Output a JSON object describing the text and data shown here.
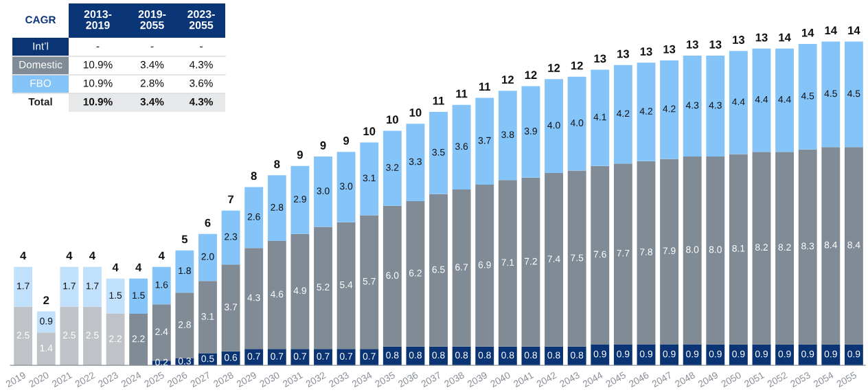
{
  "chart_data": {
    "type": "bar",
    "stacked": true,
    "legend": false,
    "categories": [
      "2019",
      "2020",
      "2021",
      "2022",
      "2023",
      "2024",
      "2025",
      "2026",
      "2027",
      "2028",
      "2029",
      "2030",
      "2031",
      "2032",
      "2033",
      "2034",
      "2035",
      "2036",
      "2037",
      "2038",
      "2039",
      "2040",
      "2041",
      "2042",
      "2043",
      "2044",
      "2045",
      "2046",
      "2047",
      "2048",
      "2049",
      "2050",
      "2051",
      "2052",
      "2053",
      "2054",
      "2055"
    ],
    "series": [
      {
        "name": "Int’l",
        "color": "#0b3474",
        "values": [
          null,
          null,
          null,
          null,
          null,
          null,
          0.2,
          0.3,
          0.5,
          0.6,
          0.7,
          0.7,
          0.7,
          0.7,
          0.7,
          0.7,
          0.8,
          0.8,
          0.8,
          0.8,
          0.8,
          0.8,
          0.8,
          0.8,
          0.8,
          0.9,
          0.9,
          0.9,
          0.9,
          0.9,
          0.9,
          0.9,
          0.9,
          0.9,
          0.9,
          0.9,
          0.9
        ],
        "value_labels": [
          null,
          null,
          null,
          null,
          null,
          null,
          "0.2",
          "0.3",
          "0.5",
          "0.6",
          "0.7",
          "0.7",
          "0.7",
          "0.7",
          "0.7",
          "0.7",
          "0.8",
          "0.8",
          "0.8",
          "0.8",
          "0.8",
          "0.8",
          "0.8",
          "0.8",
          "0.8",
          "0.9",
          "0.9",
          "0.9",
          "0.9",
          "0.9",
          "0.9",
          "0.9",
          "0.9",
          "0.9",
          "0.9",
          "0.9",
          "0.9"
        ]
      },
      {
        "name": "Domestic",
        "color": "#808b95",
        "colors": [
          "#bfc3c8",
          "#bfc3c8",
          "#bfc3c8",
          "#bfc3c8",
          "#bfc3c8",
          "#808b95",
          "#808b95",
          "#808b95",
          "#808b95",
          "#808b95",
          "#808b95",
          "#808b95",
          "#808b95",
          "#808b95",
          "#808b95",
          "#808b95",
          "#808b95",
          "#808b95",
          "#808b95",
          "#808b95",
          "#808b95",
          "#808b95",
          "#808b95",
          "#808b95",
          "#808b95",
          "#808b95",
          "#808b95",
          "#808b95",
          "#808b95",
          "#808b95",
          "#808b95",
          "#808b95",
          "#808b95",
          "#808b95",
          "#808b95",
          "#808b95",
          "#808b95"
        ],
        "values": [
          2.5,
          1.4,
          2.5,
          2.5,
          2.2,
          2.2,
          2.4,
          2.8,
          3.1,
          3.7,
          4.3,
          4.6,
          4.9,
          5.2,
          5.4,
          5.7,
          6.0,
          6.2,
          6.5,
          6.7,
          6.9,
          7.1,
          7.2,
          7.4,
          7.5,
          7.6,
          7.7,
          7.8,
          7.9,
          8.0,
          8.0,
          8.1,
          8.2,
          8.2,
          8.3,
          8.4,
          8.4
        ],
        "value_labels": [
          "2.5",
          "1.4",
          "2.5",
          "2.5",
          "2.2",
          "2.2",
          "2.4",
          "2.8",
          "3.1",
          "3.7",
          "4.3",
          "4.6",
          "4.9",
          "5.2",
          "5.4",
          "5.7",
          "6.0",
          "6.2",
          "6.5",
          "6.7",
          "6.9",
          "7.1",
          "7.2",
          "7.4",
          "7.5",
          "7.6",
          "7.7",
          "7.8",
          "7.9",
          "8.0",
          "8.0",
          "8.1",
          "8.2",
          "8.2",
          "8.3",
          "8.4",
          "8.4"
        ]
      },
      {
        "name": "FBO",
        "color": "#85c4f9",
        "colors": [
          "#c0e0fb",
          "#c0e0fb",
          "#c0e0fb",
          "#c0e0fb",
          "#c0e0fb",
          "#85c4f9",
          "#85c4f9",
          "#85c4f9",
          "#85c4f9",
          "#85c4f9",
          "#85c4f9",
          "#85c4f9",
          "#85c4f9",
          "#85c4f9",
          "#85c4f9",
          "#85c4f9",
          "#85c4f9",
          "#85c4f9",
          "#85c4f9",
          "#85c4f9",
          "#85c4f9",
          "#85c4f9",
          "#85c4f9",
          "#85c4f9",
          "#85c4f9",
          "#85c4f9",
          "#85c4f9",
          "#85c4f9",
          "#85c4f9",
          "#85c4f9",
          "#85c4f9",
          "#85c4f9",
          "#85c4f9",
          "#85c4f9",
          "#85c4f9",
          "#85c4f9",
          "#85c4f9"
        ],
        "values": [
          1.7,
          0.9,
          1.7,
          1.7,
          1.5,
          1.5,
          1.6,
          1.8,
          2.0,
          2.3,
          2.6,
          2.8,
          2.9,
          3.0,
          3.0,
          3.1,
          3.2,
          3.3,
          3.5,
          3.6,
          3.7,
          3.8,
          3.9,
          4.0,
          4.0,
          4.1,
          4.2,
          4.2,
          4.2,
          4.3,
          4.3,
          4.4,
          4.4,
          4.4,
          4.5,
          4.5,
          4.5
        ],
        "value_labels": [
          "1.7",
          "0.9",
          "1.7",
          "1.7",
          "1.5",
          "1.5",
          "1.6",
          "1.8",
          "2.0",
          "2.3",
          "2.6",
          "2.8",
          "2.9",
          "3.0",
          "3.0",
          "3.1",
          "3.2",
          "3.3",
          "3.5",
          "3.6",
          "3.7",
          "3.8",
          "3.9",
          "4.0",
          "4.0",
          "4.1",
          "4.2",
          "4.2",
          "4.2",
          "4.3",
          "4.3",
          "4.4",
          "4.4",
          "4.4",
          "4.5",
          "4.5",
          "4.5"
        ]
      }
    ],
    "totals": [
      "4",
      "2",
      "4",
      "4",
      "4",
      "4",
      "4",
      "5",
      "6",
      "7",
      "8",
      "8",
      "9",
      "9",
      "9",
      "10",
      "10",
      "10",
      "11",
      "11",
      "11",
      "12",
      "12",
      "12",
      "12",
      "13",
      "13",
      "13",
      "13",
      "13",
      "13",
      "13",
      "13",
      "14",
      "14",
      "14",
      "14"
    ],
    "annotations": [
      "CAGR",
      "2013-\n2019",
      "2019-\n2055",
      "2023-\n2055",
      "-",
      "-",
      "-",
      "10.9%",
      "3.4%",
      "4.3%",
      "10.9%",
      "2.8%",
      "3.6%",
      "Total",
      "10.9%",
      "3.4%",
      "4.3%"
    ]
  }
}
